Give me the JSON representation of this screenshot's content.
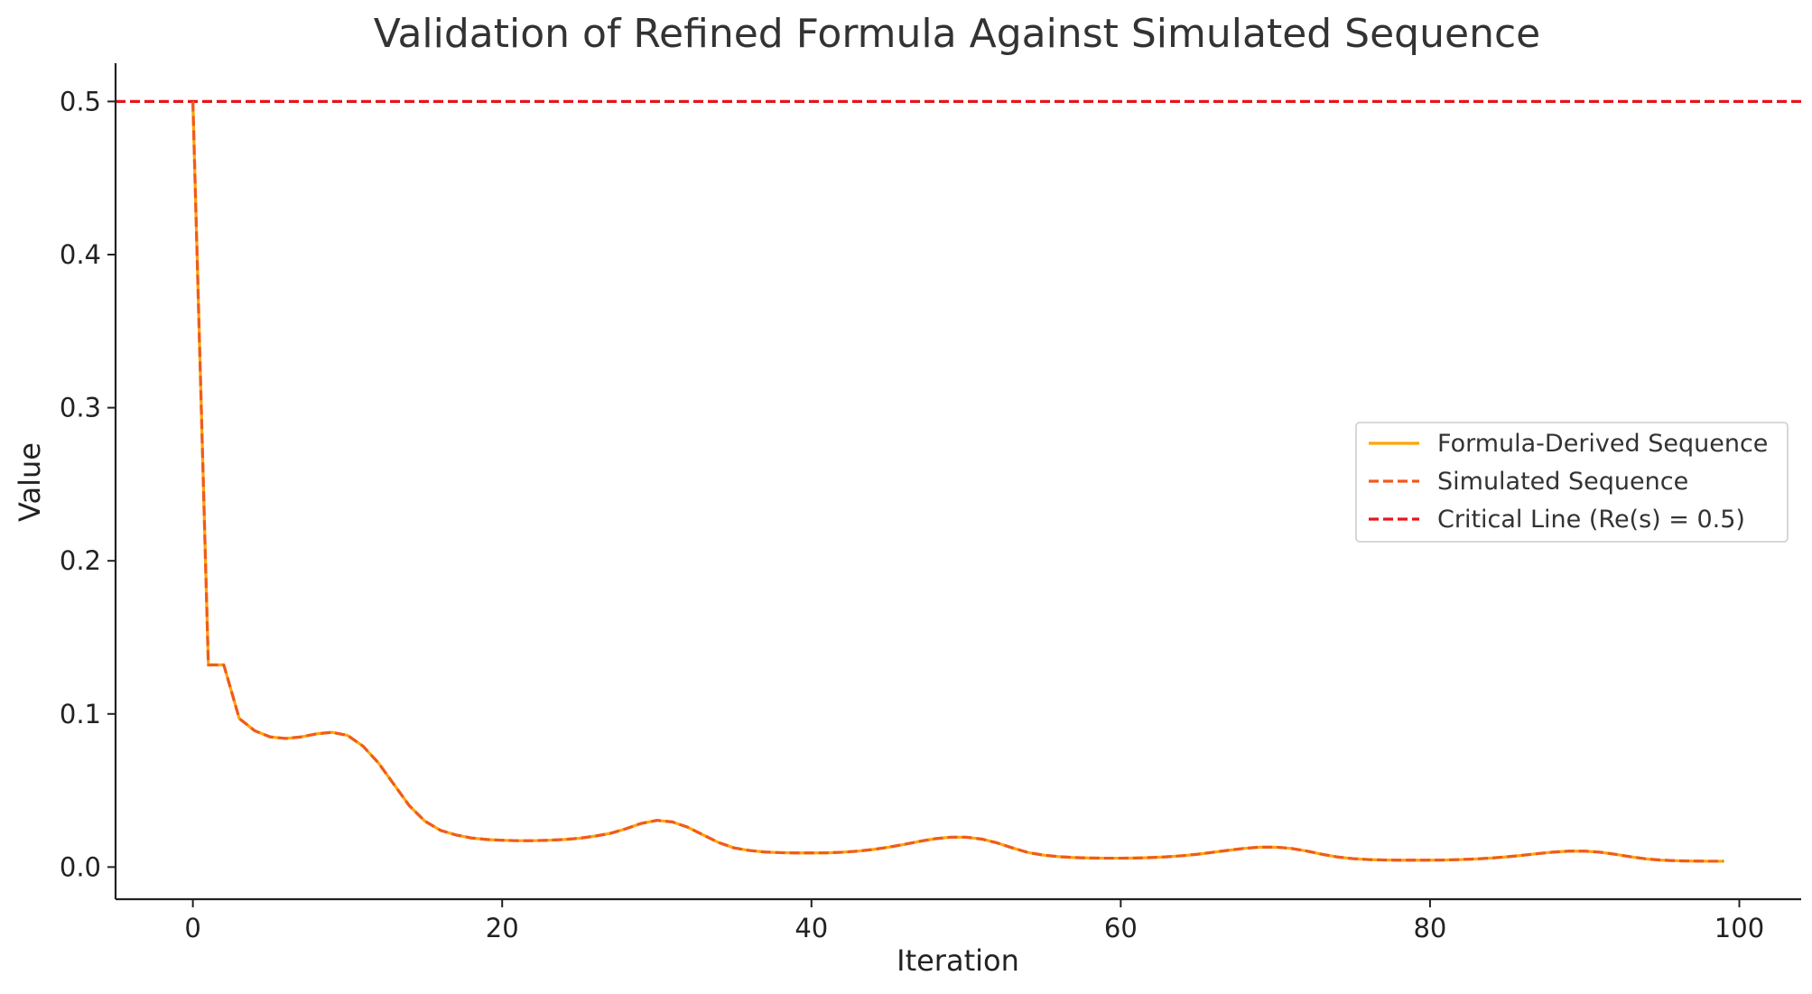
{
  "chart_data": {
    "type": "line",
    "title": "Validation of Refined Formula Against Simulated Sequence",
    "xlabel": "Iteration",
    "ylabel": "Value",
    "xlim": [
      -5,
      104
    ],
    "ylim": [
      -0.021,
      0.525
    ],
    "xticks": [
      0,
      20,
      40,
      60,
      80,
      100
    ],
    "yticks": [
      0.0,
      0.1,
      0.2,
      0.3,
      0.4,
      0.5
    ],
    "ytick_labels": [
      "0.0",
      "0.1",
      "0.2",
      "0.3",
      "0.4",
      "0.5"
    ],
    "grid": false,
    "legend_position": "center-right",
    "x": [
      0,
      1,
      2,
      3,
      4,
      5,
      6,
      7,
      8,
      9,
      10,
      11,
      12,
      13,
      14,
      15,
      16,
      17,
      18,
      19,
      20,
      21,
      22,
      23,
      24,
      25,
      26,
      27,
      28,
      29,
      30,
      31,
      32,
      33,
      34,
      35,
      36,
      37,
      38,
      39,
      40,
      41,
      42,
      43,
      44,
      45,
      46,
      47,
      48,
      49,
      50,
      51,
      52,
      53,
      54,
      55,
      56,
      57,
      58,
      59,
      60,
      61,
      62,
      63,
      64,
      65,
      66,
      67,
      68,
      69,
      70,
      71,
      72,
      73,
      74,
      75,
      76,
      77,
      78,
      79,
      80,
      81,
      82,
      83,
      84,
      85,
      86,
      87,
      88,
      89,
      90,
      91,
      92,
      93,
      94,
      95,
      96,
      97,
      98,
      99
    ],
    "series": [
      {
        "name": "Formula-Derived Sequence",
        "style": "solid",
        "color": "#FFA500",
        "values": [
          0.5,
          0.132,
          0.132,
          0.097,
          0.089,
          0.085,
          0.084,
          0.085,
          0.087,
          0.088,
          0.086,
          0.079,
          0.068,
          0.054,
          0.04,
          0.03,
          0.024,
          0.021,
          0.019,
          0.018,
          0.0175,
          0.0172,
          0.0172,
          0.0175,
          0.018,
          0.0188,
          0.0202,
          0.022,
          0.025,
          0.0285,
          0.0305,
          0.0295,
          0.026,
          0.021,
          0.016,
          0.0125,
          0.0108,
          0.0098,
          0.0094,
          0.0092,
          0.0092,
          0.0093,
          0.0097,
          0.0104,
          0.0115,
          0.013,
          0.0148,
          0.0168,
          0.0185,
          0.0195,
          0.0195,
          0.0183,
          0.0158,
          0.0125,
          0.0095,
          0.0078,
          0.0068,
          0.0062,
          0.0059,
          0.0058,
          0.0058,
          0.0059,
          0.0062,
          0.0067,
          0.0074,
          0.0084,
          0.0097,
          0.011,
          0.0122,
          0.013,
          0.013,
          0.0122,
          0.0105,
          0.0084,
          0.0066,
          0.0055,
          0.0049,
          0.0046,
          0.0045,
          0.0045,
          0.0045,
          0.0046,
          0.0049,
          0.0053,
          0.0059,
          0.0067,
          0.0077,
          0.0088,
          0.0098,
          0.0104,
          0.0104,
          0.0097,
          0.0083,
          0.0067,
          0.0053,
          0.0045,
          0.0041,
          0.0039,
          0.0038,
          0.0038
        ]
      },
      {
        "name": "Simulated Sequence",
        "style": "dashed",
        "color": "#F05A1E",
        "values": [
          0.5,
          0.132,
          0.132,
          0.097,
          0.089,
          0.085,
          0.084,
          0.085,
          0.087,
          0.088,
          0.086,
          0.079,
          0.068,
          0.054,
          0.04,
          0.03,
          0.024,
          0.021,
          0.019,
          0.018,
          0.0175,
          0.0172,
          0.0172,
          0.0175,
          0.018,
          0.0188,
          0.0202,
          0.022,
          0.025,
          0.0285,
          0.0305,
          0.0295,
          0.026,
          0.021,
          0.016,
          0.0125,
          0.0108,
          0.0098,
          0.0094,
          0.0092,
          0.0092,
          0.0093,
          0.0097,
          0.0104,
          0.0115,
          0.013,
          0.0148,
          0.0168,
          0.0185,
          0.0195,
          0.0195,
          0.0183,
          0.0158,
          0.0125,
          0.0095,
          0.0078,
          0.0068,
          0.0062,
          0.0059,
          0.0058,
          0.0058,
          0.0059,
          0.0062,
          0.0067,
          0.0074,
          0.0084,
          0.0097,
          0.011,
          0.0122,
          0.013,
          0.013,
          0.0122,
          0.0105,
          0.0084,
          0.0066,
          0.0055,
          0.0049,
          0.0046,
          0.0045,
          0.0045,
          0.0045,
          0.0046,
          0.0049,
          0.0053,
          0.0059,
          0.0067,
          0.0077,
          0.0088,
          0.0098,
          0.0104,
          0.0104,
          0.0097,
          0.0083,
          0.0067,
          0.0053,
          0.0045,
          0.0041,
          0.0039,
          0.0038,
          0.0038
        ]
      }
    ],
    "hlines": [
      {
        "name": "Critical Line (Re(s) = 0.5)",
        "y": 0.5,
        "style": "dashed",
        "color": "#E8141C"
      }
    ]
  }
}
